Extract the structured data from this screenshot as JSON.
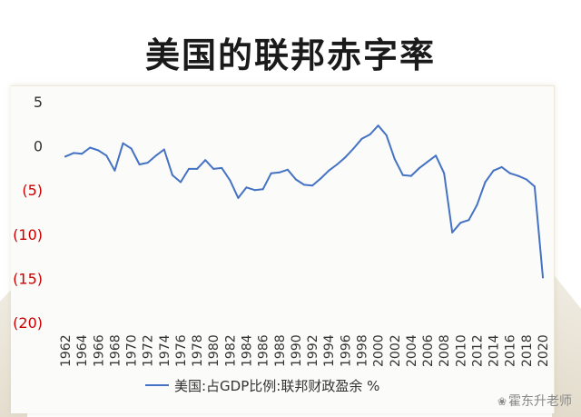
{
  "title": "美国的联邦赤字率",
  "watermark": "霍东升老师",
  "colors": {
    "line": "#4472c4",
    "negative_tick": "#cc0000",
    "positive_tick": "#333333",
    "title": "#1a1a1a"
  },
  "chart_data": {
    "type": "line",
    "title": "美国的联邦赤字率",
    "xlabel": "",
    "ylabel": "",
    "ylim": [
      -20,
      5
    ],
    "y_ticks": [
      5,
      0,
      -5,
      -10,
      -15,
      -20
    ],
    "y_tick_labels": [
      "5",
      "0",
      "(5)",
      "(10)",
      "(15)",
      "(20)"
    ],
    "x_tick_labels": [
      "1962",
      "1964",
      "1966",
      "1968",
      "1970",
      "1972",
      "1974",
      "1976",
      "1978",
      "1980",
      "1982",
      "1984",
      "1986",
      "1988",
      "1990",
      "1992",
      "1994",
      "1996",
      "1998",
      "2000",
      "2002",
      "2004",
      "2006",
      "2008",
      "2010",
      "2012",
      "2014",
      "2016",
      "2018",
      "2020"
    ],
    "grid": false,
    "legend_position": "bottom",
    "x": [
      1962,
      1963,
      1964,
      1965,
      1966,
      1967,
      1968,
      1969,
      1970,
      1971,
      1972,
      1973,
      1974,
      1975,
      1976,
      1977,
      1978,
      1979,
      1980,
      1981,
      1982,
      1983,
      1984,
      1985,
      1986,
      1987,
      1988,
      1989,
      1990,
      1991,
      1992,
      1993,
      1994,
      1995,
      1996,
      1997,
      1998,
      1999,
      2000,
      2001,
      2002,
      2003,
      2004,
      2005,
      2006,
      2007,
      2008,
      2009,
      2010,
      2011,
      2012,
      2013,
      2014,
      2015,
      2016,
      2017,
      2018,
      2019,
      2020
    ],
    "series": [
      {
        "name": "美国:占GDP比例:联邦财政盈余 %",
        "values": [
          -1.2,
          -0.8,
          -0.9,
          -0.2,
          -0.5,
          -1.1,
          -2.8,
          0.3,
          -0.3,
          -2.1,
          -1.9,
          -1.1,
          -0.4,
          -3.3,
          -4.1,
          -2.6,
          -2.6,
          -1.6,
          -2.6,
          -2.5,
          -3.9,
          -5.9,
          -4.7,
          -5.0,
          -4.9,
          -3.1,
          -3.0,
          -2.7,
          -3.8,
          -4.4,
          -4.5,
          -3.7,
          -2.8,
          -2.1,
          -1.3,
          -0.3,
          0.8,
          1.3,
          2.3,
          1.2,
          -1.5,
          -3.3,
          -3.4,
          -2.5,
          -1.8,
          -1.1,
          -3.1,
          -9.8,
          -8.7,
          -8.4,
          -6.7,
          -4.1,
          -2.8,
          -2.4,
          -3.1,
          -3.4,
          -3.8,
          -4.6,
          -14.9
        ]
      }
    ]
  }
}
